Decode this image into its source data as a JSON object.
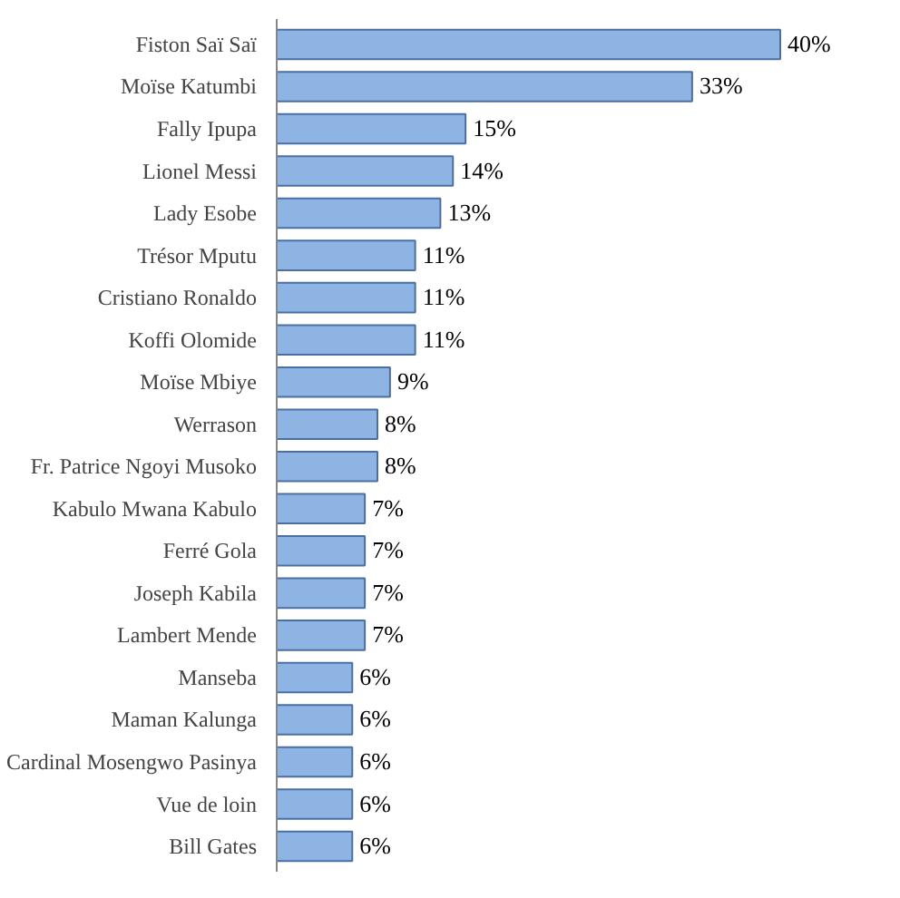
{
  "chart_data": {
    "type": "bar",
    "orientation": "horizontal",
    "categories": [
      "Fiston Saï Saï",
      "Moïse Katumbi",
      "Fally Ipupa",
      "Lionel Messi",
      "Lady Esobe",
      "Trésor Mputu",
      "Cristiano Ronaldo",
      "Koffi Olomide",
      "Moïse Mbiye",
      "Werrason",
      "Fr. Patrice Ngoyi Musoko",
      "Kabulo Mwana Kabulo",
      "Ferré Gola",
      "Joseph Kabila",
      "Lambert Mende",
      "Manseba",
      "Maman Kalunga",
      "Cardinal Mosengwo Pasinya",
      "Vue de loin",
      "Bill Gates"
    ],
    "values": [
      40,
      33,
      15,
      14,
      13,
      11,
      11,
      11,
      9,
      8,
      8,
      7,
      7,
      7,
      7,
      6,
      6,
      6,
      6,
      6
    ],
    "value_labels": [
      "40%",
      "33%",
      "15%",
      "14%",
      "13%",
      "11%",
      "11%",
      "11%",
      "9%",
      "8%",
      "8%",
      "7%",
      "7%",
      "7%",
      "7%",
      "6%",
      "6%",
      "6%",
      "6%",
      "6%"
    ],
    "color": "#8eb4e3",
    "grid": false
  }
}
